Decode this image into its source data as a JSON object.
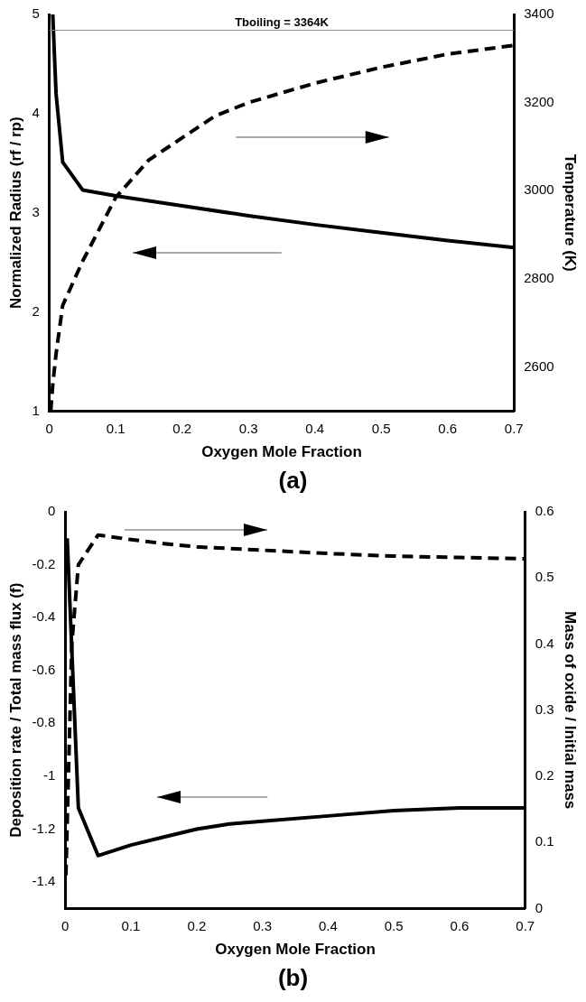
{
  "chart_data": [
    {
      "type": "line",
      "title": "(a)",
      "xlabel": "Oxygen Mole Fraction",
      "ylabel": "Normalized Radius (rf / rp)",
      "y2label": "Temperature (K)",
      "xlim": [
        0,
        0.7
      ],
      "xticks": [
        0,
        0.1,
        0.2,
        0.3,
        0.4,
        0.5,
        0.6,
        0.7
      ],
      "ylim": [
        1,
        5
      ],
      "yticks": [
        1,
        2,
        3,
        4,
        5
      ],
      "y2lim": [
        2500,
        3400
      ],
      "y2ticks": [
        2600,
        2800,
        3000,
        3200,
        3400
      ],
      "grid": false,
      "legend": false,
      "marker": "none",
      "ref_lines": [
        {
          "axis": "y2",
          "value": 3364,
          "label": "Tboiling = 3364K",
          "color": "#888888",
          "line_style": "solid"
        }
      ],
      "series": [
        {
          "color": "#000000",
          "line_style": "solid",
          "x": [
            0.005,
            0.01,
            0.02,
            0.05,
            0.1,
            0.2,
            0.3,
            0.4,
            0.5,
            0.6,
            0.7
          ],
          "values": [
            5,
            4.2,
            3.51,
            3.23,
            3.17,
            3.07,
            2.97,
            2.88,
            2.8,
            2.72,
            2.65
          ]
        },
        {
          "color": "#000000",
          "line_style": "dashed",
          "axis": "y2",
          "x": [
            0.002,
            0.005,
            0.01,
            0.02,
            0.05,
            0.1,
            0.15,
            0.2,
            0.25,
            0.3,
            0.4,
            0.5,
            0.6,
            0.7
          ],
          "values": [
            2500,
            2560,
            2630,
            2740,
            2840,
            2985,
            3070,
            3120,
            3170,
            3200,
            3244,
            3280,
            3310,
            3330
          ]
        }
      ]
    },
    {
      "type": "line",
      "title": "(b)",
      "xlabel": "Oxygen Mole Fraction",
      "ylabel": "Deposition rate / Total mass flux (f)",
      "y2label": "Mass of oxide / Initial mass",
      "xlim": [
        0,
        0.7
      ],
      "xticks": [
        0,
        0.1,
        0.2,
        0.3,
        0.4,
        0.5,
        0.6,
        0.7
      ],
      "ylim": [
        -1.5,
        0
      ],
      "yticks": [
        -1.4,
        -1.2,
        -1,
        -0.8,
        -0.6,
        -0.4,
        -0.2,
        0
      ],
      "y2lim": [
        0,
        0.6
      ],
      "y2ticks": [
        0,
        0.1,
        0.2,
        0.3,
        0.4,
        0.5,
        0.6
      ],
      "grid": false,
      "legend": false,
      "marker": "none",
      "series": [
        {
          "color": "#000000",
          "line_style": "solid",
          "x": [
            0.003,
            0.02,
            0.05,
            0.1,
            0.15,
            0.2,
            0.25,
            0.3,
            0.4,
            0.5,
            0.6,
            0.7
          ],
          "values": [
            -0.1,
            -1.12,
            -1.3,
            -1.26,
            -1.23,
            -1.2,
            -1.18,
            -1.17,
            -1.15,
            -1.13,
            -1.12,
            -1.12
          ]
        },
        {
          "color": "#000000",
          "line_style": "dashed",
          "axis": "y2",
          "x": [
            0.001,
            0.01,
            0.02,
            0.05,
            0.1,
            0.15,
            0.2,
            0.3,
            0.4,
            0.5,
            0.6,
            0.7
          ],
          "values": [
            0.05,
            0.4,
            0.52,
            0.565,
            0.558,
            0.552,
            0.547,
            0.542,
            0.537,
            0.533,
            0.531,
            0.529
          ]
        }
      ]
    }
  ]
}
